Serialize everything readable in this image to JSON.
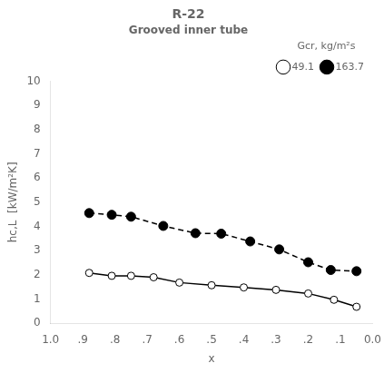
{
  "chart_data": {
    "type": "line",
    "title": "R-22",
    "subtitle": "Grooved inner tube",
    "x_label": "x",
    "y_label": "hc,L  [kW/m²K]",
    "xlim": [
      1.0,
      0.0
    ],
    "ylim": [
      0,
      10
    ],
    "xticks": [
      {
        "value": 1.0,
        "label": "1.0"
      },
      {
        "value": 0.9,
        "label": ".9"
      },
      {
        "value": 0.8,
        "label": ".8"
      },
      {
        "value": 0.7,
        "label": ".7"
      },
      {
        "value": 0.6,
        "label": ".6"
      },
      {
        "value": 0.5,
        "label": ".5"
      },
      {
        "value": 0.4,
        "label": ".4"
      },
      {
        "value": 0.3,
        "label": ".3"
      },
      {
        "value": 0.2,
        "label": ".2"
      },
      {
        "value": 0.1,
        "label": ".1"
      },
      {
        "value": 0.0,
        "label": "0.0"
      }
    ],
    "yticks": [
      0,
      1,
      2,
      3,
      4,
      5,
      6,
      7,
      8,
      9,
      10
    ],
    "grid": false,
    "legend": "upper right",
    "legend_title": "Gcr, kg/m²s",
    "series": [
      {
        "name": "49.1",
        "color": "#000000",
        "marker": "circle-open",
        "line_style": "solid",
        "x": [
          0.88,
          0.81,
          0.75,
          0.68,
          0.6,
          0.5,
          0.4,
          0.3,
          0.2,
          0.12,
          0.05
        ],
        "values": [
          2.08,
          1.96,
          1.96,
          1.9,
          1.68,
          1.57,
          1.48,
          1.38,
          1.23,
          0.97,
          0.68
        ]
      },
      {
        "name": "163.7",
        "color": "#000000",
        "marker": "circle",
        "line_style": "dashed",
        "x": [
          0.88,
          0.81,
          0.75,
          0.65,
          0.55,
          0.47,
          0.38,
          0.29,
          0.2,
          0.13,
          0.05
        ],
        "values": [
          4.55,
          4.48,
          4.4,
          4.02,
          3.72,
          3.7,
          3.38,
          3.05,
          2.52,
          2.2,
          2.15
        ]
      }
    ]
  }
}
